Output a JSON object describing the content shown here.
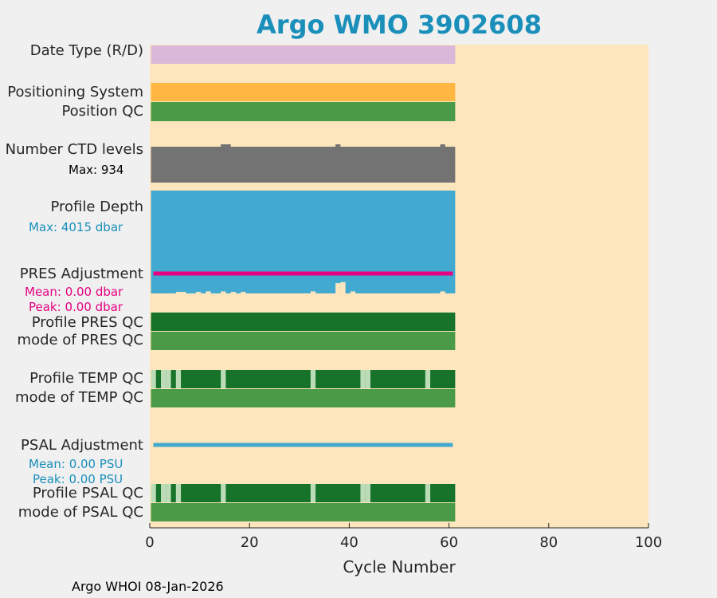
{
  "colors": {
    "background": "#fde6bd",
    "date_type": "#d9b8d9",
    "positioning": "#ffb642",
    "qc_mode": "#4a9a48",
    "qc_dark": "#17732a",
    "qc_light": "#bcdcb8",
    "ctd": "#737373",
    "depth": "#42aad0",
    "pres_adjust": "#e5007f",
    "psal_adjust": "#42aad0",
    "blue_text": "#1a8fba",
    "magenta_text": "#e5007f"
  },
  "chart_data": {
    "type": "bar",
    "title": "Argo WMO 3902608",
    "xlabel": "Cycle Number",
    "xlim": [
      0,
      100
    ],
    "xticks": [
      0,
      20,
      40,
      60,
      80,
      100
    ],
    "cycles": [
      1,
      61
    ],
    "rows": [
      {
        "key": "date_type",
        "label": "Date Type (R/D)"
      },
      {
        "key": "positioning",
        "label": "Positioning System"
      },
      {
        "key": "position_qc",
        "label": "Position QC"
      },
      {
        "key": "ctd_levels",
        "label": "Number CTD levels",
        "note": "Max: 934"
      },
      {
        "key": "profile_depth",
        "label": "Profile Depth",
        "note": "Max: 4015 dbar"
      },
      {
        "key": "pres_adjustment",
        "label": "PRES Adjustment",
        "mean": "Mean: 0.00 dbar",
        "peak": "Peak: 0.00 dbar"
      },
      {
        "key": "profile_pres_qc",
        "label": "Profile PRES QC"
      },
      {
        "key": "mode_pres_qc",
        "label": "mode of PRES QC"
      },
      {
        "key": "profile_temp_qc",
        "label": "Profile TEMP QC"
      },
      {
        "key": "mode_temp_qc",
        "label": "mode of TEMP QC"
      },
      {
        "key": "psal_adjustment",
        "label": "PSAL Adjustment",
        "mean": "Mean: 0.00 PSU",
        "peak": "Peak: 0.00 PSU"
      },
      {
        "key": "profile_psal_qc",
        "label": "Profile PSAL QC"
      },
      {
        "key": "mode_psal_qc",
        "label": "mode of PSAL QC"
      }
    ],
    "ctd_levels_max": 934,
    "ctd_spikes": [
      15,
      16,
      38,
      59
    ],
    "depth_max_dbar": 4015,
    "depth_shortfall_cycles": [
      {
        "cycle": 6,
        "frac": 0.015
      },
      {
        "cycle": 7,
        "frac": 0.015
      },
      {
        "cycle": 10,
        "frac": 0.015
      },
      {
        "cycle": 12,
        "frac": 0.02
      },
      {
        "cycle": 15,
        "frac": 0.02
      },
      {
        "cycle": 17,
        "frac": 0.015
      },
      {
        "cycle": 19,
        "frac": 0.015
      },
      {
        "cycle": 33,
        "frac": 0.02
      },
      {
        "cycle": 38,
        "frac": 0.1
      },
      {
        "cycle": 39,
        "frac": 0.11
      },
      {
        "cycle": 41,
        "frac": 0.02
      },
      {
        "cycle": 59,
        "frac": 0.02
      }
    ],
    "pres_adjustment_mean": 0.0,
    "psal_adjustment_mean": 0.0,
    "temp_qc_light_cycles": [
      1,
      3,
      4,
      6,
      15,
      33,
      43,
      44,
      56
    ],
    "psal_qc_light_cycles": [
      1,
      3,
      4,
      6,
      15,
      33,
      43,
      44,
      56
    ]
  },
  "footer": "Argo WHOI 08-Jan-2026"
}
